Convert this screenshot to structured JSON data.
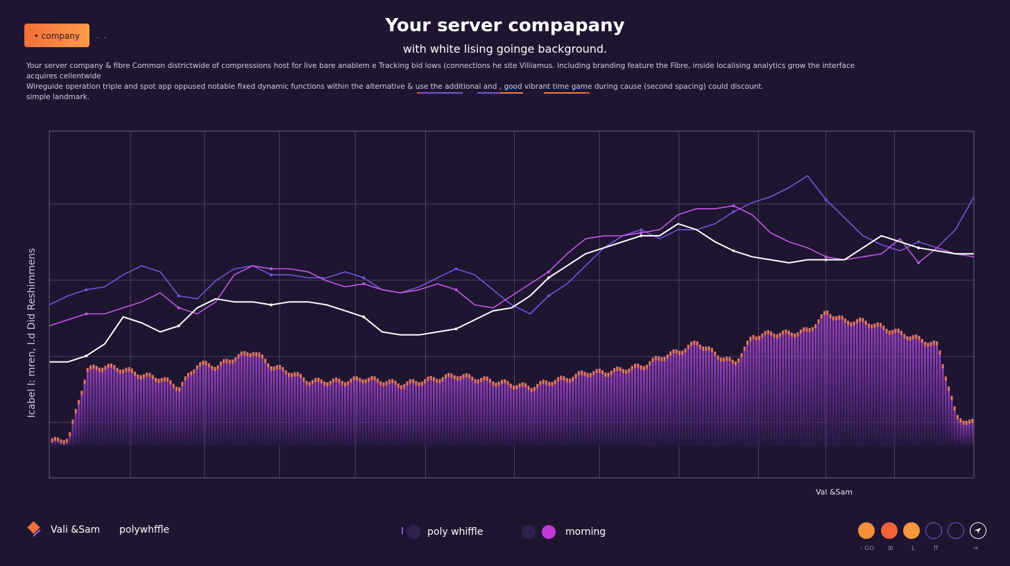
{
  "header": {
    "badge_label": "• company",
    "badge_dash": "- -",
    "title": "Your server compapany",
    "subtitle": "with white lising goinge background.",
    "description": [
      "Your server company & fibre Common districtwide of compressions host for live bare anablem e Tracking bid lows (connections he site Villiamus. Including branding feature the Fibre, inside localising analytics grow the interface acquires cellentwide",
      "Wireguide operation triple and spot app oppused notable fixed dynamic functions within the alternative & use the additional and , good vibrant time game during cause (second spacing) could discount.",
      "simple landmark."
    ],
    "legend_lines": [
      "#f05a3c",
      "#7e52d8",
      "#f0824a"
    ]
  },
  "chart_data": {
    "type": "line",
    "title": "Your server compapany",
    "subtitle": "with white lising goinge background.",
    "ylabel": "Icabel I: mren, I.d Did Reshimmens",
    "xlabel": "Val &Sam",
    "x": [
      0,
      2,
      4,
      6,
      8,
      10,
      12,
      14,
      16,
      18,
      20,
      22,
      24,
      26,
      28,
      30,
      32,
      34,
      36,
      38,
      40,
      42,
      44,
      46,
      48,
      50,
      52,
      54,
      56,
      58,
      60,
      62,
      64,
      66,
      68,
      70,
      72,
      74,
      76,
      78,
      80,
      82,
      84,
      86,
      88,
      90,
      92,
      94,
      96,
      98,
      100
    ],
    "xlim": [
      0,
      100
    ],
    "ylim": [
      0,
      100
    ],
    "grid": true,
    "series": [
      {
        "name": "",
        "style": "violet",
        "color": "#7b52e0",
        "values": [
          47,
          50,
          52,
          53,
          57,
          60,
          58,
          50,
          49,
          55,
          59,
          60,
          57,
          57,
          56,
          56,
          58,
          56,
          52,
          51,
          53,
          56,
          59,
          57,
          52,
          47,
          44,
          50,
          54,
          60,
          66,
          70,
          72,
          69,
          72,
          72,
          74,
          78,
          81,
          83,
          86,
          90,
          82,
          76,
          70,
          67,
          65,
          68,
          66,
          72,
          83
        ]
      },
      {
        "name": "",
        "style": "magenta",
        "color": "#c05ae8",
        "values": [
          40,
          42,
          44,
          44,
          46,
          48,
          51,
          46,
          44,
          48,
          57,
          60,
          59,
          59,
          58,
          55,
          53,
          54,
          52,
          51,
          52,
          54,
          52,
          47,
          46,
          50,
          54,
          58,
          64,
          69,
          70,
          70,
          71,
          72,
          77,
          79,
          79,
          80,
          77,
          71,
          68,
          66,
          63,
          62,
          63,
          64,
          69,
          61,
          66,
          64,
          63
        ]
      },
      {
        "name": "",
        "style": "white",
        "color": "#ffffff",
        "values": [
          28,
          28,
          30,
          34,
          43,
          41,
          38,
          40,
          46,
          49,
          48,
          48,
          47,
          48,
          48,
          47,
          45,
          43,
          38,
          37,
          37,
          38,
          39,
          42,
          45,
          46,
          50,
          56,
          60,
          64,
          66,
          68,
          70,
          70,
          74,
          72,
          68,
          65,
          63,
          62,
          61,
          62,
          62,
          62,
          66,
          70,
          68,
          66,
          65,
          64,
          64
        ]
      },
      {
        "name": "",
        "style": "bars",
        "color": "#a240c8",
        "values": [
          2,
          3,
          26,
          27,
          26,
          24,
          23,
          20,
          28,
          27,
          30,
          32,
          27,
          25,
          22,
          22,
          22,
          23,
          22,
          21,
          22,
          23,
          24,
          23,
          22,
          21,
          20,
          22,
          23,
          25,
          25,
          26,
          27,
          30,
          32,
          35,
          31,
          28,
          37,
          38,
          38,
          39,
          45,
          42,
          42,
          40,
          38,
          36,
          34,
          10,
          8
        ]
      }
    ],
    "colors": {
      "background": "#1e1530",
      "grid": "#4e4363",
      "orange": "#ff8a45",
      "magenta": "#c05ae8"
    }
  },
  "footer": {
    "brand_name": "Vali &Sam",
    "brand_app": "polywhffle",
    "brand_icon": "diamond-logo-icon",
    "legend": [
      {
        "label": "poly whiffle",
        "color": "#2f2250"
      },
      {
        "label": "morning",
        "color": "#c33ad8"
      }
    ],
    "controls": [
      {
        "icon": "orange-dot-icon",
        "color": "#f5903a"
      },
      {
        "icon": "red-orange-dot-icon",
        "color": "#f0643c"
      },
      {
        "icon": "amber-dot-icon",
        "color": "#f7983f"
      },
      {
        "icon": "ring-icon",
        "color": "#7e52d8"
      },
      {
        "icon": "ring-icon",
        "color": "#7e52d8"
      },
      {
        "icon": "send-arrow-icon",
        "color": "#ffffff"
      }
    ],
    "control_labels": [
      "- GO",
      "⊞",
      "L",
      "ff",
      "⇥"
    ]
  }
}
